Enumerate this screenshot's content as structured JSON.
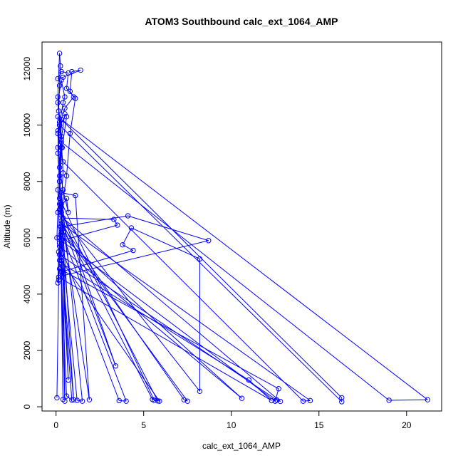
{
  "chart_data": {
    "type": "line",
    "title": "ATOM3 Southbound calc_ext_1064_AMP",
    "xlabel": "calc_ext_1064_AMP",
    "ylabel": "Altitude (m)",
    "xlim": [
      -0.8,
      22.0
    ],
    "ylim": [
      -150,
      12950
    ],
    "xticks": [
      0,
      5,
      10,
      15,
      20
    ],
    "yticks": [
      0,
      2000,
      4000,
      6000,
      8000,
      10000,
      12000
    ],
    "grid": false,
    "legend": "none",
    "color": "#0000ff",
    "series": [
      {
        "values": [
          [
            0.05,
            320
          ],
          [
            0.15,
            4500
          ],
          [
            0.2,
            6000
          ],
          [
            0.1,
            7700
          ],
          [
            0.3,
            9600
          ],
          [
            0.1,
            11000
          ],
          [
            0.2,
            12550
          ],
          [
            0.25,
            12100
          ],
          [
            0.2,
            11400
          ],
          [
            0.15,
            10500
          ],
          [
            0.3,
            9200
          ],
          [
            0.2,
            8200
          ],
          [
            0.3,
            6900
          ],
          [
            0.2,
            5800
          ],
          [
            3.6,
            220
          ],
          [
            4.0,
            200
          ],
          [
            0.3,
            6200
          ],
          [
            0.1,
            10300
          ],
          [
            21.2,
            250
          ],
          [
            19.0,
            230
          ],
          [
            0.3,
            9400
          ],
          [
            0.2,
            7400
          ],
          [
            5.6,
            230
          ],
          [
            5.8,
            210
          ],
          [
            0.2,
            7000
          ],
          [
            0.3,
            10200
          ],
          [
            16.3,
            320
          ],
          [
            16.3,
            180
          ],
          [
            0.2,
            10000
          ],
          [
            0.1,
            9800
          ],
          [
            0.4,
            8700
          ],
          [
            14.1,
            200
          ],
          [
            14.5,
            220
          ],
          [
            0.3,
            6500
          ],
          [
            0.2,
            5400
          ],
          [
            12.6,
            240
          ],
          [
            12.8,
            190
          ],
          [
            0.4,
            6700
          ],
          [
            3.3,
            6650
          ],
          [
            3.5,
            6450
          ],
          [
            0.3,
            5900
          ],
          [
            12.5,
            200
          ],
          [
            12.7,
            640
          ],
          [
            0.2,
            4900
          ],
          [
            0.15,
            4600
          ],
          [
            12.3,
            220
          ],
          [
            11.0,
            950
          ],
          [
            0.3,
            5100
          ],
          [
            0.2,
            5700
          ],
          [
            10.6,
            300
          ],
          [
            0.25,
            6100
          ],
          [
            0.3,
            6800
          ],
          [
            8.2,
            550
          ],
          [
            8.2,
            5250
          ],
          [
            4.3,
            6350
          ],
          [
            3.8,
            5750
          ],
          [
            4.4,
            5550
          ],
          [
            0.35,
            4800
          ],
          [
            0.3,
            6300
          ],
          [
            7.5,
            200
          ],
          [
            7.3,
            250
          ],
          [
            0.4,
            6400
          ],
          [
            4.1,
            6780
          ],
          [
            8.7,
            5900
          ],
          [
            0.35,
            4650
          ],
          [
            0.3,
            5200
          ],
          [
            5.9,
            200
          ],
          [
            5.5,
            260
          ],
          [
            0.3,
            6600
          ],
          [
            3.4,
            1450
          ],
          [
            0.2,
            7200
          ],
          [
            0.25,
            7000
          ],
          [
            1.9,
            250
          ],
          [
            1.1,
            7500
          ],
          [
            0.3,
            7600
          ],
          [
            1.5,
            200
          ],
          [
            1.2,
            230
          ],
          [
            0.25,
            6400
          ],
          [
            0.4,
            260
          ],
          [
            0.3,
            5300
          ],
          [
            0.9,
            240
          ],
          [
            0.6,
            380
          ],
          [
            0.3,
            4800
          ],
          [
            0.5,
            200
          ],
          [
            0.4,
            6200
          ],
          [
            1.0,
            250
          ],
          [
            0.35,
            5000
          ],
          [
            0.7,
            950
          ],
          [
            0.3,
            7200
          ],
          [
            0.4,
            8300
          ],
          [
            0.3,
            9500
          ],
          [
            0.5,
            10400
          ],
          [
            0.6,
            10300
          ],
          [
            0.35,
            9200
          ],
          [
            0.2,
            8000
          ],
          [
            0.3,
            7100
          ],
          [
            0.6,
            7400
          ],
          [
            0.7,
            6900
          ],
          [
            0.4,
            7700
          ],
          [
            0.2,
            8500
          ],
          [
            0.1,
            9700
          ],
          [
            0.3,
            10200
          ],
          [
            0.5,
            10600
          ],
          [
            1.0,
            11000
          ],
          [
            0.8,
            11200
          ],
          [
            0.9,
            11900
          ],
          [
            1.4,
            11950
          ],
          [
            0.4,
            11700
          ],
          [
            0.1,
            11650
          ],
          [
            0.3,
            11900
          ],
          [
            0.7,
            11850
          ],
          [
            0.6,
            11300
          ],
          [
            1.1,
            10950
          ],
          [
            0.8,
            9700
          ],
          [
            0.6,
            8200
          ],
          [
            0.3,
            6900
          ],
          [
            0.2,
            5200
          ],
          [
            0.1,
            4400
          ],
          [
            0.15,
            5500
          ],
          [
            0.05,
            6000
          ],
          [
            0.1,
            6900
          ],
          [
            0.2,
            8000
          ],
          [
            0.1,
            9000
          ],
          [
            0.2,
            10100
          ],
          [
            0.1,
            10800
          ],
          [
            0.3,
            11600
          ],
          [
            0.5,
            11000
          ],
          [
            0.4,
            10800
          ],
          [
            0.2,
            10000
          ],
          [
            0.1,
            9200
          ]
        ]
      }
    ]
  }
}
